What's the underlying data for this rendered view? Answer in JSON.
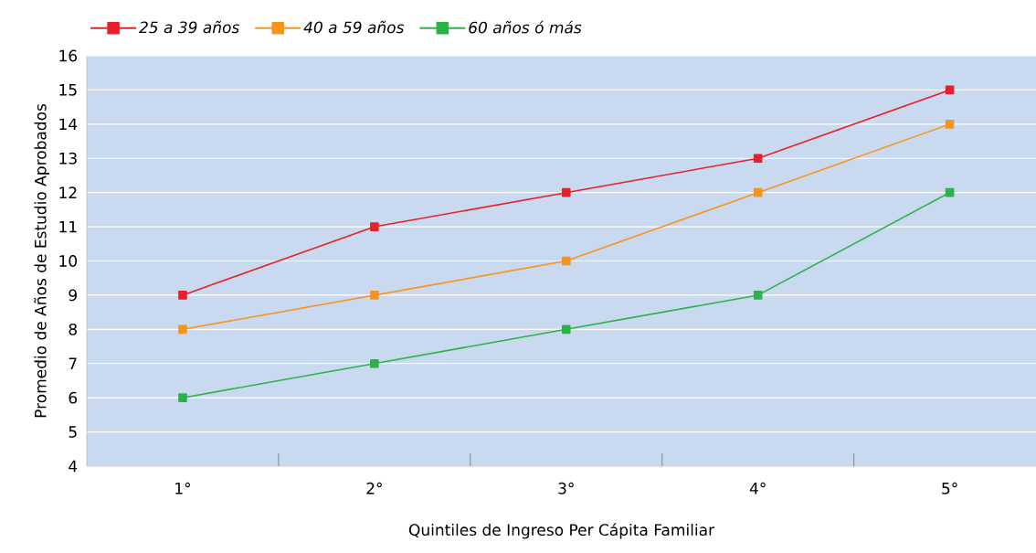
{
  "chart_data": {
    "type": "line",
    "xlabel": "Quintiles de Ingreso Per Cápita Familiar",
    "ylabel": "Promedio de Años de Estudio Aprobados",
    "categories": [
      "1°",
      "2°",
      "3°",
      "4°",
      "5°"
    ],
    "series": [
      {
        "name": "25 a 39 años",
        "color": "#e8202a",
        "values": [
          9,
          11,
          12,
          13,
          15
        ]
      },
      {
        "name": "40 a 59 años",
        "color": "#f7941d",
        "values": [
          8,
          9,
          10,
          12,
          14
        ]
      },
      {
        "name": "60 años ó más",
        "color": "#2bb34a",
        "values": [
          6,
          7,
          8,
          9,
          12
        ]
      }
    ],
    "ylim": [
      4,
      16
    ],
    "yticks": [
      4,
      5,
      6,
      7,
      8,
      9,
      10,
      11,
      12,
      13,
      14,
      15,
      16
    ],
    "grid": "y",
    "legend": "top left",
    "marker": "square",
    "line_style": "solid"
  }
}
